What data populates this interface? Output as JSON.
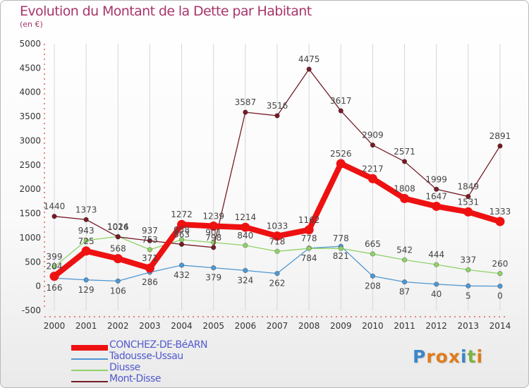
{
  "header": {
    "title": "Evolution du Montant de la Dette par Habitant",
    "subtitle": "(en €)"
  },
  "logo": {
    "letters": [
      "P",
      "r",
      "o",
      "x",
      "i",
      "t",
      "i"
    ],
    "colors": [
      "#3d86c9",
      "#e07b1c",
      "#e07b1c",
      "#e07b1c",
      "#3d86c9",
      "#7cb342",
      "#e07b1c"
    ]
  },
  "chart_data": {
    "type": "line",
    "title": "Evolution du Montant de la Dette par Habitant",
    "ylabel": "(en €)",
    "xlabel": "",
    "ylim": [
      -500,
      5000
    ],
    "yticks": [
      "-500",
      "0",
      "500",
      "1000",
      "1500",
      "2000",
      "2500",
      "3000",
      "3500",
      "4000",
      "4500",
      "5000"
    ],
    "categories": [
      "2000",
      "2001",
      "2002",
      "2003",
      "2004",
      "2005",
      "2006",
      "2007",
      "2008",
      "2009",
      "2010",
      "2011",
      "2012",
      "2013",
      "2014"
    ],
    "grid": "vertical",
    "series": [
      {
        "name": "CONCHEZ-DE-BéARN",
        "color": "#ee1111",
        "values": [
          204,
          725,
          568,
          371,
          1272,
          1239,
          1214,
          1033,
          1162,
          2526,
          2217,
          1808,
          1647,
          1531,
          1333
        ],
        "labels": [
          "204",
          "725",
          "568",
          "371",
          "1272",
          "1239",
          "1214",
          "1033",
          "1162",
          "2526",
          "2217",
          "1808",
          "1647",
          "1531",
          "1333"
        ]
      },
      {
        "name": "Tadousse-Ussau",
        "color": "#4f97d2",
        "values": [
          166,
          129,
          106,
          286,
          432,
          379,
          324,
          262,
          784,
          821,
          208,
          87,
          40,
          5,
          0
        ],
        "labels": [
          "166",
          "129",
          "106",
          "286",
          "432",
          "379",
          "324",
          "262",
          "784",
          "821",
          "208",
          "87",
          "40",
          "5",
          "0"
        ]
      },
      {
        "name": "Diusse",
        "color": "#90d169",
        "values": [
          399,
          943,
          1024,
          753,
          958,
          901,
          840,
          718,
          778,
          778,
          665,
          542,
          444,
          337,
          260
        ],
        "labels": [
          "399",
          "943",
          "1024",
          "753",
          "958",
          "901",
          "840",
          "718",
          "778",
          "778",
          "665",
          "542",
          "444",
          "337",
          "260"
        ]
      },
      {
        "name": "Mont-Disse",
        "color": "#761c26",
        "values": [
          1440,
          1373,
          1016,
          937,
          863,
          798,
          3587,
          3516,
          4475,
          3617,
          2909,
          2571,
          1999,
          1849,
          2891
        ],
        "labels": [
          "1440",
          "1373",
          "1016",
          "937",
          "863",
          "798",
          "3587",
          "3516",
          "4475",
          "3617",
          "2909",
          "2571",
          "1999",
          "1849",
          "2891"
        ]
      }
    ]
  }
}
